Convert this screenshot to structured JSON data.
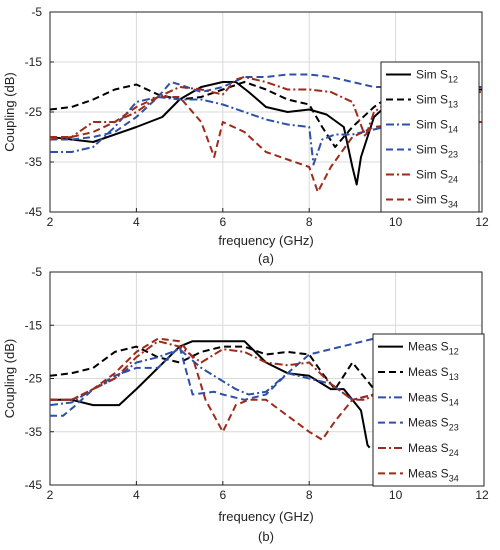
{
  "chart_data": [
    {
      "type": "line",
      "panel_label": "(a)",
      "xlabel": "frequency (GHz)",
      "ylabel": "Coupling (dB)",
      "xlim": [
        2,
        12
      ],
      "ylim": [
        -45,
        -5
      ],
      "xticks": [
        2,
        4,
        6,
        8,
        10,
        12
      ],
      "yticks": [
        -5,
        -15,
        -25,
        -35,
        -45
      ],
      "grid": true,
      "legend_position": "right",
      "series": [
        {
          "name": "Sim S",
          "sub": "12",
          "color": "#000000",
          "dash": "solid",
          "x": [
            2,
            3,
            4,
            4.6,
            5,
            5.5,
            6,
            6.3,
            6.6,
            7,
            7.5,
            8,
            8.4,
            8.8,
            9.0,
            9.1,
            9.2,
            9.5,
            10,
            11,
            12
          ],
          "y": [
            -30,
            -31,
            -28,
            -26,
            -22.5,
            -20,
            -19,
            -19,
            -21,
            -24,
            -25,
            -24.5,
            -25.5,
            -28,
            -36,
            -39.5,
            -34,
            -26,
            -22,
            -21,
            -20.5
          ]
        },
        {
          "name": "Sim S",
          "sub": "13",
          "color": "#000000",
          "dash": "dashed",
          "x": [
            2,
            2.5,
            3,
            3.5,
            4,
            4.5,
            5,
            5.5,
            6,
            6.5,
            7,
            7.5,
            8,
            8.3,
            8.6,
            9,
            9.5,
            10,
            11,
            12
          ],
          "y": [
            -24.5,
            -24,
            -22.5,
            -20.5,
            -19.5,
            -21.5,
            -22.5,
            -22,
            -20.5,
            -19,
            -20.5,
            -22.5,
            -23.5,
            -28,
            -32,
            -28,
            -24,
            -21,
            -20.5,
            -20.5
          ]
        },
        {
          "name": "Sim S",
          "sub": "14",
          "color": "#2f4fa8",
          "dash": "dashdot",
          "x": [
            2,
            2.5,
            3,
            3.5,
            4,
            4.5,
            5,
            5.5,
            6,
            6.5,
            7,
            7.5,
            8,
            8.1,
            8.3,
            8.6,
            9,
            9.5,
            10,
            11,
            12
          ],
          "y": [
            -33,
            -33,
            -32,
            -28,
            -23,
            -22,
            -22.5,
            -22.5,
            -23.5,
            -25,
            -26.5,
            -27.5,
            -28,
            -35.5,
            -30.5,
            -29.5,
            -29.5,
            -28.5,
            -27.5,
            -27.5,
            -27
          ]
        },
        {
          "name": "Sim S",
          "sub": "23",
          "color": "#2f4fa8",
          "dash": "dashed",
          "x": [
            2,
            2.5,
            3,
            3.5,
            4,
            4.5,
            4.8,
            5,
            5.5,
            6,
            6.5,
            7,
            7.5,
            8,
            8.5,
            9,
            9.5,
            10,
            11,
            12
          ],
          "y": [
            -30.5,
            -30.5,
            -30,
            -29,
            -26,
            -22,
            -19,
            -19.5,
            -21,
            -20,
            -18,
            -18,
            -17.5,
            -17.5,
            -18,
            -19,
            -20,
            -20,
            -20,
            -20
          ]
        },
        {
          "name": "Sim S",
          "sub": "24",
          "color": "#9e2a1a",
          "dash": "dashdot",
          "x": [
            2,
            2.5,
            3,
            3.5,
            4,
            4.5,
            5,
            5.5,
            6,
            6.3,
            6.5,
            7,
            7.5,
            8,
            8.5,
            9,
            9.3,
            9.5,
            10,
            11,
            12
          ],
          "y": [
            -30.5,
            -30,
            -27,
            -27,
            -25,
            -22,
            -20,
            -20.5,
            -21.5,
            -18.5,
            -18,
            -19,
            -20.5,
            -20.5,
            -21,
            -23,
            -30,
            -25,
            -22,
            -21.5,
            -21
          ]
        },
        {
          "name": "Sim S",
          "sub": "34",
          "color": "#9e2a1a",
          "dash": "dashed",
          "x": [
            2,
            2.5,
            3,
            3.5,
            4,
            4.5,
            5,
            5.5,
            5.8,
            6,
            6.5,
            7,
            7.5,
            8,
            8.2,
            8.5,
            9,
            9.5,
            10,
            11,
            12
          ],
          "y": [
            -30,
            -30,
            -29,
            -27,
            -24,
            -22,
            -22,
            -27,
            -34,
            -27,
            -29,
            -33,
            -34.5,
            -36,
            -41,
            -36,
            -30,
            -28,
            -27.5,
            -27,
            -27
          ]
        }
      ]
    },
    {
      "type": "line",
      "panel_label": "(b)",
      "xlabel": "frequency (GHz)",
      "ylabel": "Coupling (dB)",
      "xlim": [
        2,
        12
      ],
      "ylim": [
        -45,
        -5
      ],
      "xticks": [
        2,
        4,
        6,
        8,
        10,
        12
      ],
      "yticks": [
        -5,
        -15,
        -25,
        -35,
        -45
      ],
      "grid": true,
      "legend_position": "right",
      "series": [
        {
          "name": "Meas S",
          "sub": "12",
          "color": "#000000",
          "dash": "solid",
          "x": [
            2,
            2.5,
            3,
            3.6,
            4,
            4.5,
            5,
            5.3,
            5.6,
            6,
            6.5,
            7,
            7.5,
            8,
            8.5,
            8.8,
            9.0,
            9.2,
            9.35,
            9.4
          ],
          "y": [
            -29,
            -29,
            -30,
            -30,
            -27,
            -23,
            -19,
            -18,
            -18,
            -18,
            -18,
            -22,
            -24,
            -24.5,
            -27,
            -27,
            -29,
            -31,
            -37.5,
            -38
          ]
        },
        {
          "name": "Meas S",
          "sub": "13",
          "color": "#000000",
          "dash": "dashed",
          "x": [
            2,
            2.5,
            3,
            3.5,
            4,
            4.5,
            5,
            5.5,
            6,
            6.5,
            7,
            7.5,
            8,
            8.3,
            8.6,
            9,
            9.3,
            9.5,
            10,
            11,
            12
          ],
          "y": [
            -24.5,
            -24,
            -23,
            -20,
            -19,
            -21,
            -22,
            -20,
            -19,
            -19,
            -20.5,
            -20,
            -20.5,
            -24,
            -27,
            -22,
            -25,
            -27,
            -28,
            -30,
            -36
          ]
        },
        {
          "name": "Meas S",
          "sub": "14",
          "color": "#2f4fa8",
          "dash": "dashdot",
          "x": [
            2,
            2.5,
            3,
            3.5,
            4,
            4.5,
            5,
            5.5,
            6,
            6.3,
            6.6,
            7,
            7.5,
            8,
            8.5,
            9,
            9.5,
            10,
            11,
            12
          ],
          "y": [
            -30,
            -29.5,
            -27,
            -25,
            -22,
            -21,
            -19.5,
            -23,
            -25.5,
            -27,
            -28,
            -27.5,
            -24,
            -25,
            -26,
            -29,
            -28,
            -27,
            -27,
            -27
          ]
        },
        {
          "name": "Meas S",
          "sub": "23",
          "color": "#2f4fa8",
          "dash": "dashed",
          "x": [
            2,
            2.3,
            2.6,
            3,
            3.5,
            4,
            4.5,
            5,
            5.3,
            5.8,
            6,
            6.5,
            7,
            7.5,
            8,
            8.5,
            9,
            9.5,
            10,
            11,
            12
          ],
          "y": [
            -32,
            -32,
            -30,
            -27,
            -24.5,
            -23,
            -23,
            -19,
            -28,
            -27.5,
            -28,
            -29,
            -28,
            -24,
            -20.5,
            -19.5,
            -18.5,
            -17.5,
            -17.5,
            -17,
            -17
          ]
        },
        {
          "name": "Meas S",
          "sub": "24",
          "color": "#9e2a1a",
          "dash": "dashdot",
          "x": [
            2,
            2.5,
            3,
            3.5,
            4,
            4.5,
            5,
            5.5,
            6,
            6.5,
            7,
            7.5,
            8,
            8.5,
            9,
            9.3,
            9.5,
            10,
            11,
            12
          ],
          "y": [
            -29,
            -29,
            -27,
            -25,
            -21,
            -18,
            -19,
            -22,
            -19.5,
            -20,
            -22,
            -22.5,
            -22,
            -26,
            -29,
            -29,
            -28,
            -27,
            -26,
            -25
          ]
        },
        {
          "name": "Meas S",
          "sub": "34",
          "color": "#9e2a1a",
          "dash": "dashed",
          "x": [
            2,
            2.5,
            3,
            3.5,
            4,
            4.5,
            5,
            5.3,
            5.6,
            6,
            6.3,
            6.6,
            7,
            7.5,
            8,
            8.3,
            8.6,
            9,
            9.5,
            10,
            11,
            12
          ],
          "y": [
            -29,
            -29,
            -27,
            -24,
            -20,
            -17.5,
            -18,
            -21,
            -29,
            -35,
            -30,
            -29,
            -29,
            -32,
            -35,
            -36.5,
            -33,
            -29,
            -28,
            -27,
            -26.5,
            -26
          ]
        }
      ]
    }
  ]
}
